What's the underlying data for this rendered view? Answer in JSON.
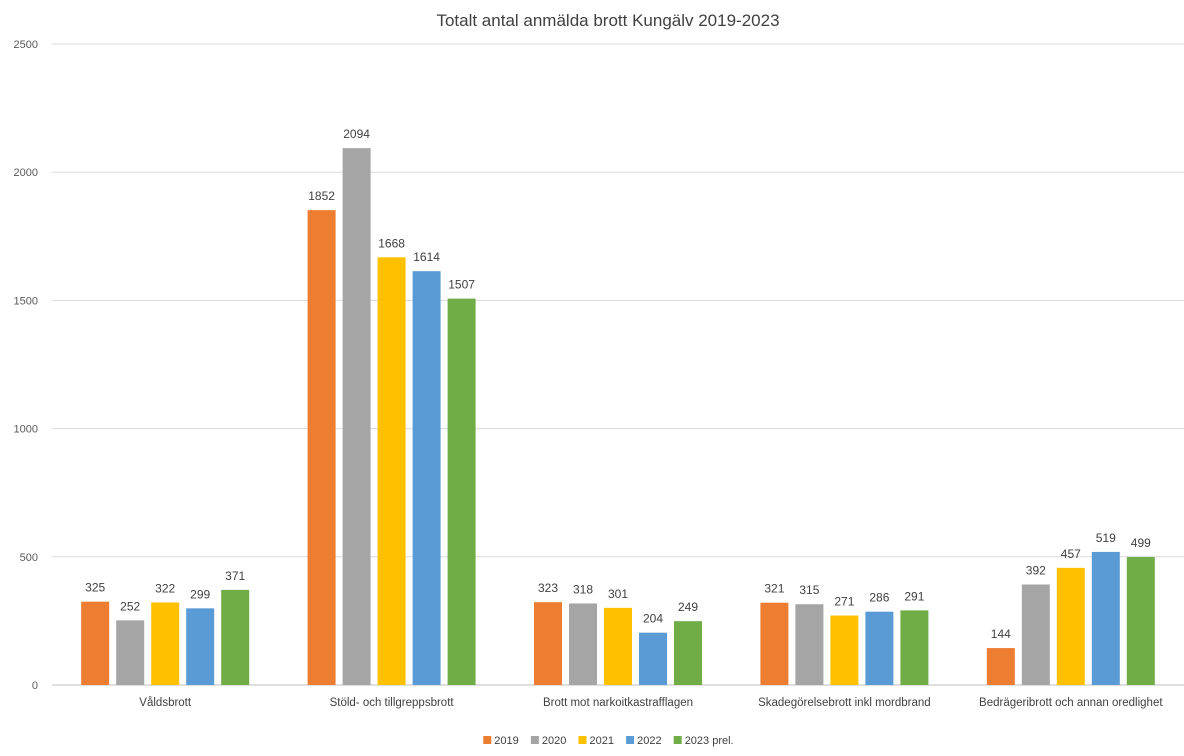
{
  "chart_data": {
    "type": "bar",
    "title": "Totalt antal anmälda brott Kungälv 2019-2023",
    "xlabel": "",
    "ylabel": "",
    "ylim": [
      0,
      2500
    ],
    "yticks": [
      0,
      500,
      1000,
      1500,
      2000,
      2500
    ],
    "grid": true,
    "legend_position": "bottom",
    "categories": [
      "Våldsbrott",
      "Stöld- och tillgreppsbrott",
      "Brott mot narkoitkastrafflagen",
      "Skadegörelsebrott inkl mordbrand",
      "Bedrägeribrott och annan oredlighet"
    ],
    "series": [
      {
        "name": "2019",
        "color": "#ED7D31",
        "values": [
          325,
          1852,
          323,
          321,
          144
        ]
      },
      {
        "name": "2020",
        "color": "#A5A5A5",
        "values": [
          252,
          2094,
          318,
          315,
          392
        ]
      },
      {
        "name": "2021",
        "color": "#FFC000",
        "values": [
          322,
          1668,
          301,
          271,
          457
        ]
      },
      {
        "name": "2022",
        "color": "#5B9BD5",
        "values": [
          299,
          1614,
          204,
          286,
          519
        ]
      },
      {
        "name": "2023 prel.",
        "color": "#70AD47",
        "values": [
          371,
          1507,
          249,
          291,
          499
        ]
      }
    ]
  }
}
